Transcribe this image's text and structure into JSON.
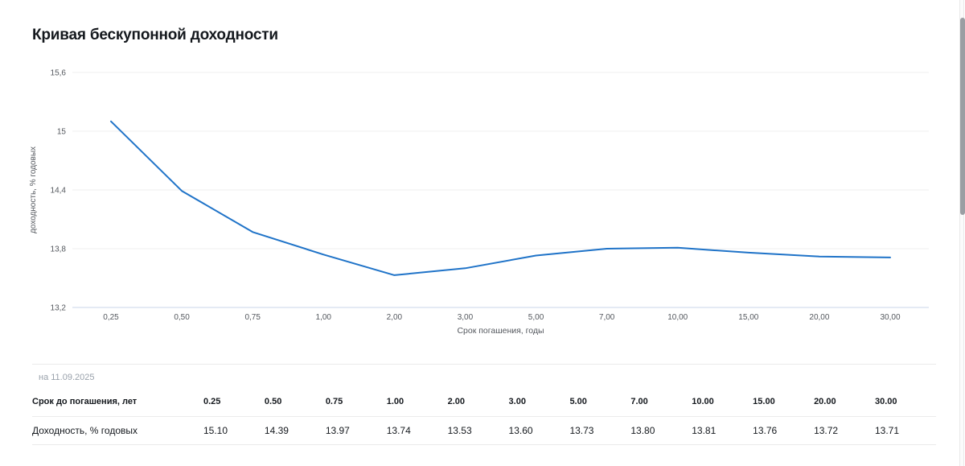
{
  "title": "Кривая бескупонной доходности",
  "chart_data": {
    "type": "line",
    "categories": [
      "0,25",
      "0,50",
      "0,75",
      "1,00",
      "2,00",
      "3,00",
      "5,00",
      "7,00",
      "10,00",
      "15,00",
      "20,00",
      "30,00"
    ],
    "values": [
      15.1,
      14.39,
      13.97,
      13.74,
      13.53,
      13.6,
      13.73,
      13.8,
      13.81,
      13.76,
      13.72,
      13.71
    ],
    "title": "Кривая бескупонной доходности",
    "xlabel": "Срок погашения, годы",
    "ylabel": "доходность, % годовых",
    "ylim": [
      13.2,
      15.6
    ],
    "yticks": [
      {
        "value": 15.6,
        "label": "15,6"
      },
      {
        "value": 15.0,
        "label": "15"
      },
      {
        "value": 14.4,
        "label": "14,4"
      },
      {
        "value": 13.8,
        "label": "13,8"
      },
      {
        "value": 13.2,
        "label": "13,2"
      }
    ],
    "grid": true,
    "legend": "none"
  },
  "table": {
    "date_label": "на 11.09.2025",
    "rows": [
      {
        "label": "Срок до погашения, лет",
        "bold": true,
        "values": [
          "0.25",
          "0.50",
          "0.75",
          "1.00",
          "2.00",
          "3.00",
          "5.00",
          "7.00",
          "10.00",
          "15.00",
          "20.00",
          "30.00"
        ]
      },
      {
        "label": "Доходность, % годовых",
        "bold": false,
        "values": [
          "15.10",
          "14.39",
          "13.97",
          "13.74",
          "13.53",
          "13.60",
          "13.73",
          "13.80",
          "13.81",
          "13.76",
          "13.72",
          "13.71"
        ]
      }
    ]
  },
  "colors": {
    "line": "#1f73c8",
    "grid": "#efefef",
    "axis_line": "#c9d6e8",
    "tick_label": "#54585e",
    "title": "#14181d",
    "date": "#99a1ab",
    "scrollbar_thumb": "#9b9ea3"
  }
}
